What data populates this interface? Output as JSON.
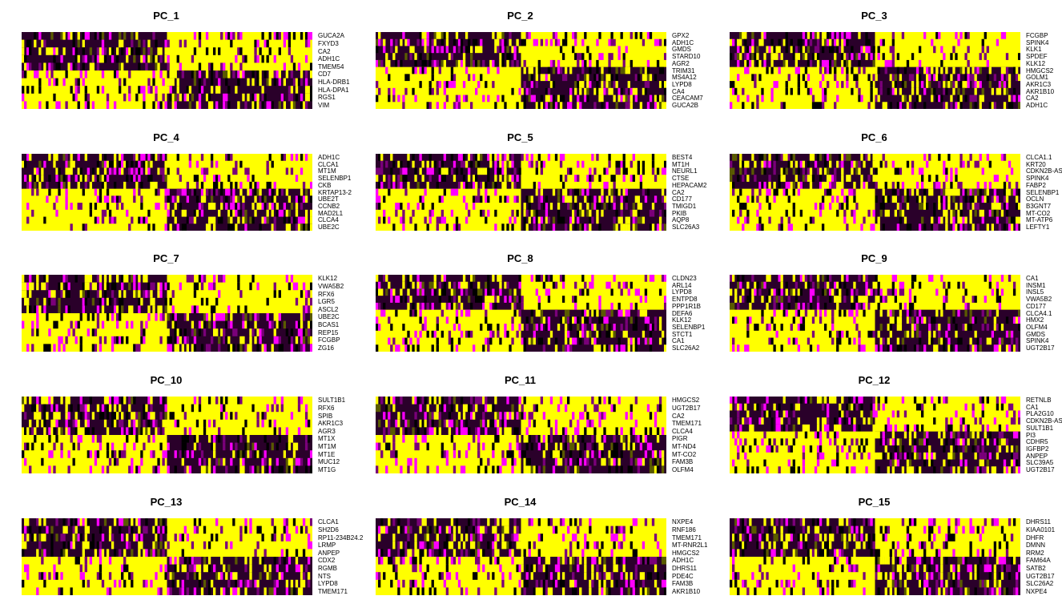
{
  "colors": {
    "low": "#ff00ff",
    "mid": "#000000",
    "high": "#ffff00"
  },
  "chart_data": [
    {
      "type": "heatmap",
      "title": "PC_1",
      "genes": [
        "GUCA2A",
        "FXYD3",
        "CA2",
        "ADH1C",
        "TMEM54",
        "CD7",
        "HLA-DRB1",
        "HLA-DPA1",
        "RGS1",
        "VIM"
      ],
      "high_block": [
        "right",
        "right",
        "right",
        "right",
        "right",
        "left",
        "left",
        "left",
        "left",
        "left"
      ]
    },
    {
      "type": "heatmap",
      "title": "PC_2",
      "genes": [
        "GPX2",
        "ADH1C",
        "GMDS",
        "STARD10",
        "AGR2",
        "TRIM31",
        "MS4A12",
        "LYPD8",
        "CA4",
        "CEACAM7",
        "GUCA2B"
      ],
      "high_block": [
        "right",
        "right",
        "right",
        "right",
        "right",
        "left",
        "left",
        "left",
        "left",
        "left",
        "left"
      ]
    },
    {
      "type": "heatmap",
      "title": "PC_3",
      "genes": [
        "FCGBP",
        "SPINK4",
        "KLK1",
        "SPDEF",
        "KLK12",
        "HMGCS2",
        "GOLM1",
        "AKR1C3",
        "AKR1B10",
        "CA2",
        "ADH1C"
      ],
      "high_block": [
        "right",
        "right",
        "right",
        "right",
        "right",
        "left",
        "left",
        "left",
        "left",
        "left",
        "left"
      ]
    },
    {
      "type": "heatmap",
      "title": "PC_4",
      "genes": [
        "ADH1C",
        "CLCA1",
        "MT1M",
        "SELENBP1",
        "CKB",
        "KRTAP13-2",
        "UBE2T",
        "CCNB2",
        "MAD2L1",
        "CLCA4",
        "UBE2C"
      ],
      "high_block": [
        "right",
        "right",
        "right",
        "right",
        "right",
        "left",
        "left",
        "left",
        "left",
        "left",
        "left"
      ]
    },
    {
      "type": "heatmap",
      "title": "PC_5",
      "genes": [
        "BEST4",
        "MT1H",
        "NEURL1",
        "CTSE",
        "HEPACAM2",
        "CA2",
        "CD177",
        "TMIGD1",
        "PKIB",
        "AQP8",
        "SLC26A3"
      ],
      "high_block": [
        "right",
        "right",
        "right",
        "right",
        "right",
        "left",
        "left",
        "left",
        "left",
        "left",
        "left"
      ]
    },
    {
      "type": "heatmap",
      "title": "PC_6",
      "genes": [
        "CLCA1.1",
        "KRT20",
        "CDKN2B-AS",
        "SPINK4",
        "FABP2",
        "SELENBP1",
        "OCLN",
        "B3GNT7",
        "MT-CO2",
        "MT-ATP6",
        "LEFTY1"
      ],
      "high_block": [
        "right",
        "right",
        "right",
        "right",
        "right",
        "left",
        "left",
        "left",
        "left",
        "left",
        "left"
      ]
    },
    {
      "type": "heatmap",
      "title": "PC_7",
      "genes": [
        "KLK12",
        "VWA5B2",
        "RFX6",
        "LGR5",
        "ASCL2",
        "UBE2C",
        "BCAS1",
        "REP15",
        "FCGBP",
        "ZG16"
      ],
      "high_block": [
        "right",
        "right",
        "right",
        "right",
        "right",
        "left",
        "left",
        "left",
        "left",
        "left"
      ]
    },
    {
      "type": "heatmap",
      "title": "PC_8",
      "genes": [
        "CLDN23",
        "ARL14",
        "LYPD8",
        "ENTPD8",
        "PPP1R1B",
        "DEFA6",
        "KLK12",
        "SELENBP1",
        "STCT1",
        "CA1",
        "SLC26A2"
      ],
      "high_block": [
        "right",
        "right",
        "right",
        "right",
        "right",
        "left",
        "left",
        "left",
        "left",
        "left",
        "left"
      ]
    },
    {
      "type": "heatmap",
      "title": "PC_9",
      "genes": [
        "CA1",
        "INSM1",
        "INSL5",
        "VWA5B2",
        "CD177",
        "CLCA4.1",
        "HMX2",
        "OLFM4",
        "GMDS",
        "SPINK4",
        "UGT2B17"
      ],
      "high_block": [
        "right",
        "right",
        "right",
        "right",
        "right",
        "left",
        "left",
        "left",
        "left",
        "left",
        "left"
      ]
    },
    {
      "type": "heatmap",
      "title": "PC_10",
      "genes": [
        "SULT1B1",
        "RFX6",
        "SPIB",
        "AKR1C3",
        "AGR3",
        "MT1X",
        "MT1M",
        "MT1E",
        "MUC12",
        "MT1G"
      ],
      "high_block": [
        "right",
        "right",
        "right",
        "right",
        "right",
        "left",
        "left",
        "left",
        "left",
        "left"
      ]
    },
    {
      "type": "heatmap",
      "title": "PC_11",
      "genes": [
        "HMGCS2",
        "UGT2B17",
        "CA2",
        "TMEM171",
        "CLCA4",
        "PIGR",
        "MT-ND4",
        "MT-CO2",
        "FAM3B",
        "OLFM4"
      ],
      "high_block": [
        "right",
        "right",
        "right",
        "right",
        "right",
        "left",
        "left",
        "left",
        "left",
        "left"
      ]
    },
    {
      "type": "heatmap",
      "title": "PC_12",
      "genes": [
        "RETNLB",
        "CA1",
        "PLA2G10",
        "CDKN2B-AS",
        "SULT1B1",
        "PI3",
        "CDHR5",
        "IGFBP2",
        "ANPEP",
        "SLC39A5",
        "UGT2B17"
      ],
      "high_block": [
        "right",
        "right",
        "right",
        "right",
        "right",
        "left",
        "left",
        "left",
        "left",
        "left",
        "left"
      ]
    },
    {
      "type": "heatmap",
      "title": "PC_13",
      "genes": [
        "CLCA1",
        "SH2D6",
        "RP11-234B24.2",
        "LRMP",
        "ANPEP",
        "CDX2",
        "RGMB",
        "NTS",
        "LYPD8",
        "TMEM171"
      ],
      "high_block": [
        "right",
        "right",
        "right",
        "right",
        "right",
        "left",
        "left",
        "left",
        "left",
        "left"
      ]
    },
    {
      "type": "heatmap",
      "title": "PC_14",
      "genes": [
        "NXPE4",
        "RNF186",
        "TMEM171",
        "MT-RNR2L1",
        "HMGCS2",
        "ADH1C",
        "DHRS11",
        "PDE4C",
        "FAM3B",
        "AKR1B10"
      ],
      "high_block": [
        "right",
        "right",
        "right",
        "right",
        "right",
        "left",
        "left",
        "left",
        "left",
        "left"
      ]
    },
    {
      "type": "heatmap",
      "title": "PC_15",
      "genes": [
        "DHRS11",
        "KIAA0101",
        "DHFR",
        "DMNN",
        "RRM2",
        "FAM64A",
        "SATB2",
        "UGT2B17",
        "SLC26A2",
        "NXPE4"
      ],
      "high_block": [
        "right",
        "right",
        "right",
        "right",
        "right",
        "left",
        "left",
        "left",
        "left",
        "left"
      ]
    }
  ]
}
